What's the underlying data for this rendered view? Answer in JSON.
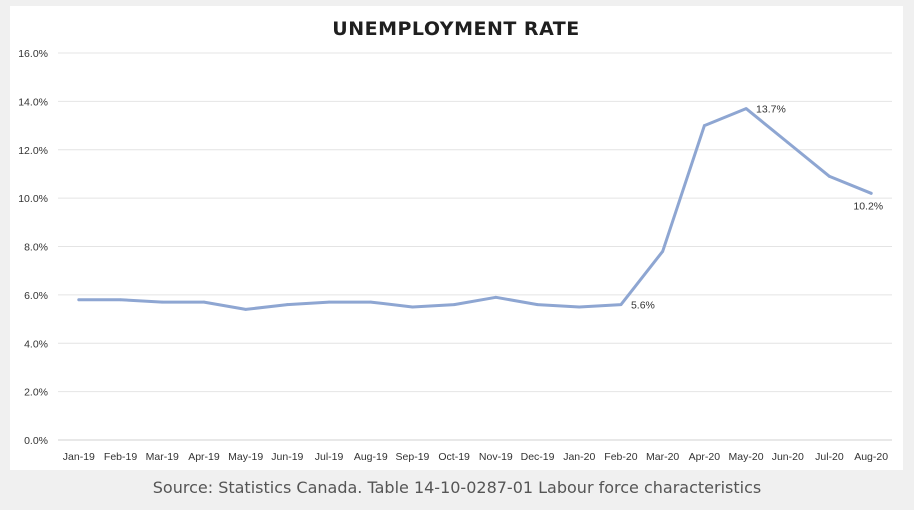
{
  "chart_data": {
    "type": "line",
    "title": "UNEMPLOYMENT RATE",
    "xlabel": "",
    "ylabel": "",
    "ylim": [
      0,
      16
    ],
    "yticks": [
      "0.0%",
      "2.0%",
      "4.0%",
      "6.0%",
      "8.0%",
      "10.0%",
      "12.0%",
      "14.0%",
      "16.0%"
    ],
    "categories": [
      "Jan-19",
      "Feb-19",
      "Mar-19",
      "Apr-19",
      "May-19",
      "Jun-19",
      "Jul-19",
      "Aug-19",
      "Sep-19",
      "Oct-19",
      "Nov-19",
      "Dec-19",
      "Jan-20",
      "Feb-20",
      "Mar-20",
      "Apr-20",
      "May-20",
      "Jun-20",
      "Jul-20",
      "Aug-20"
    ],
    "series": [
      {
        "name": "Unemployment rate",
        "color": "#8ea6d2",
        "values": [
          5.8,
          5.8,
          5.7,
          5.7,
          5.4,
          5.6,
          5.7,
          5.7,
          5.5,
          5.6,
          5.9,
          5.6,
          5.5,
          5.6,
          7.8,
          13.0,
          13.7,
          12.3,
          10.9,
          10.2
        ]
      }
    ],
    "annotations": [
      {
        "index": 13,
        "text": "5.6%"
      },
      {
        "index": 16,
        "text": "13.7%"
      },
      {
        "index": 19,
        "text": "10.2%"
      }
    ],
    "grid": true,
    "legend": "none"
  },
  "source": "Source: Statistics Canada. Table 14-10-0287-01 Labour force characteristics"
}
